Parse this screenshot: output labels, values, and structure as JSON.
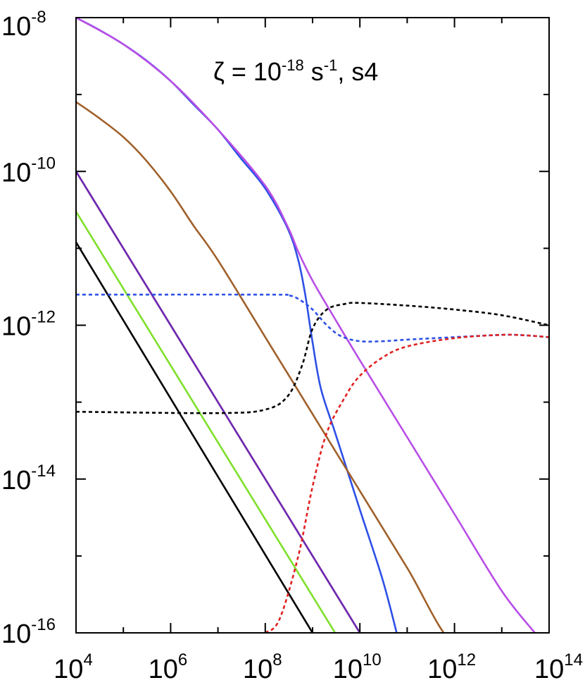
{
  "chart_data": {
    "type": "line",
    "title": "",
    "xlabel": "",
    "ylabel": "",
    "x_scale": "log",
    "y_scale": "log",
    "xlim": [
      10000,
      100000000000000
    ],
    "ylim": [
      1e-16,
      1e-08
    ],
    "grid": false,
    "x_ticks": [
      {
        "base": "10",
        "exp": "4"
      },
      {
        "base": "10",
        "exp": "6"
      },
      {
        "base": "10",
        "exp": "8"
      },
      {
        "base": "10",
        "exp": "10"
      },
      {
        "base": "10",
        "exp": "12"
      },
      {
        "base": "10",
        "exp": "14"
      }
    ],
    "y_ticks": [
      {
        "base": "10",
        "exp": "-8"
      },
      {
        "base": "10",
        "exp": "-10"
      },
      {
        "base": "10",
        "exp": "-12"
      },
      {
        "base": "10",
        "exp": "-14"
      },
      {
        "base": "10",
        "exp": "-16"
      }
    ],
    "annotation": {
      "prefix": "ζ = 10",
      "exp": "-18",
      "unit": " s",
      "unit_exp": "-1",
      "suffix": ", s4"
    },
    "series": [
      {
        "color": "#2d50e6",
        "style": "solid",
        "x": [
          10000,
          30000,
          100000,
          300000,
          1000000,
          3000000,
          10000000,
          30000000,
          100000000,
          300000000,
          500000000,
          700000000,
          1000000000,
          1500000000,
          3000000000,
          10000000000,
          30000000000,
          60000000000
        ],
        "y": [
          1e-08,
          7e-09,
          4.5e-09,
          2.8e-09,
          1.5e-09,
          7.5e-10,
          3.5e-10,
          1.5e-10,
          6e-11,
          1.8e-11,
          7e-12,
          2.5e-12,
          6e-13,
          1.5e-13,
          4e-14,
          4e-15,
          5e-16,
          1e-16
        ]
      },
      {
        "color": "#b84ee6",
        "style": "solid",
        "x": [
          10000,
          100000,
          1000000,
          10000000,
          100000000,
          300000000,
          500000000,
          1000000000,
          3000000000,
          10000000000,
          100000000000,
          1000000000000,
          10000000000000,
          50000000000000
        ],
        "y": [
          1e-08,
          4.5e-09,
          1.5e-09,
          3.5e-10,
          6.5e-11,
          1.9e-11,
          9e-12,
          3.8e-12,
          1.2e-12,
          3.5e-13,
          3.5e-14,
          3.5e-15,
          3.5e-16,
          1e-16
        ]
      },
      {
        "color": "#a0602a",
        "style": "solid",
        "x": [
          10000,
          30000,
          100000,
          300000,
          1000000,
          3000000,
          10000000,
          100000000,
          1000000000,
          10000000000,
          100000000000,
          1000000000000,
          8000000000000
        ],
        "y": [
          8e-10,
          5e-10,
          2.8e-10,
          1.4e-10,
          5.5e-11,
          2e-11,
          7e-12,
          7e-13,
          7e-14,
          7e-15,
          7e-16,
          7e-17,
          1e-16
        ]
      },
      {
        "color": "#e02020",
        "style": "solid",
        "x": [
          10000,
          10000000000
        ],
        "y": [
          1e-10,
          1e-16
        ]
      },
      {
        "color": "#6a2bb5",
        "style": "solid",
        "x": [
          10000,
          10000000000
        ],
        "y": [
          1e-10,
          1e-16
        ]
      },
      {
        "color": "#7ee02a",
        "style": "solid",
        "x": [
          10000,
          3000000000
        ],
        "y": [
          3e-11,
          1e-16
        ]
      },
      {
        "color": "#000000",
        "style": "solid",
        "x": [
          10000,
          1000000000
        ],
        "y": [
          1.2e-11,
          1e-16
        ]
      },
      {
        "color": "#2d50e6",
        "style": "dotted",
        "x": [
          10000,
          100000000,
          300000000,
          500000000,
          1000000000,
          2000000000,
          4000000000,
          10000000000,
          30000000000,
          100000000000,
          1000000000000,
          10000000000000,
          30000000000000,
          100000000000000
        ],
        "y": [
          2.5e-12,
          2.5e-12,
          2.45e-12,
          2.2e-12,
          1.6e-12,
          1e-12,
          7.2e-13,
          6.2e-13,
          6.2e-13,
          6.5e-13,
          7e-13,
          7.5e-13,
          7.4e-13,
          7e-13
        ]
      },
      {
        "color": "#000000",
        "style": "dotted",
        "x": [
          10000,
          10000000,
          100000000,
          300000000,
          600000000,
          1000000000,
          2000000000,
          5000000000,
          10000000000,
          100000000000,
          1000000000000,
          10000000000000,
          100000000000000
        ],
        "y": [
          7.5e-14,
          7.2e-14,
          8e-14,
          1.2e-13,
          3e-13,
          9e-13,
          1.6e-12,
          1.9e-12,
          1.95e-12,
          1.8e-12,
          1.6e-12,
          1.35e-12,
          1e-12
        ]
      },
      {
        "color": "#e02020",
        "style": "dotted",
        "x": [
          100000000,
          200000000,
          500000000,
          1000000000,
          2000000000,
          5000000000,
          10000000000,
          30000000000,
          100000000000,
          1000000000000,
          10000000000000,
          30000000000000,
          100000000000000
        ],
        "y": [
          1e-16,
          1.5e-16,
          1e-15,
          8e-15,
          4e-14,
          1.2e-13,
          2.2e-13,
          3.8e-13,
          5.3e-13,
          6.8e-13,
          7.5e-13,
          7.4e-13,
          7e-13
        ]
      }
    ]
  }
}
